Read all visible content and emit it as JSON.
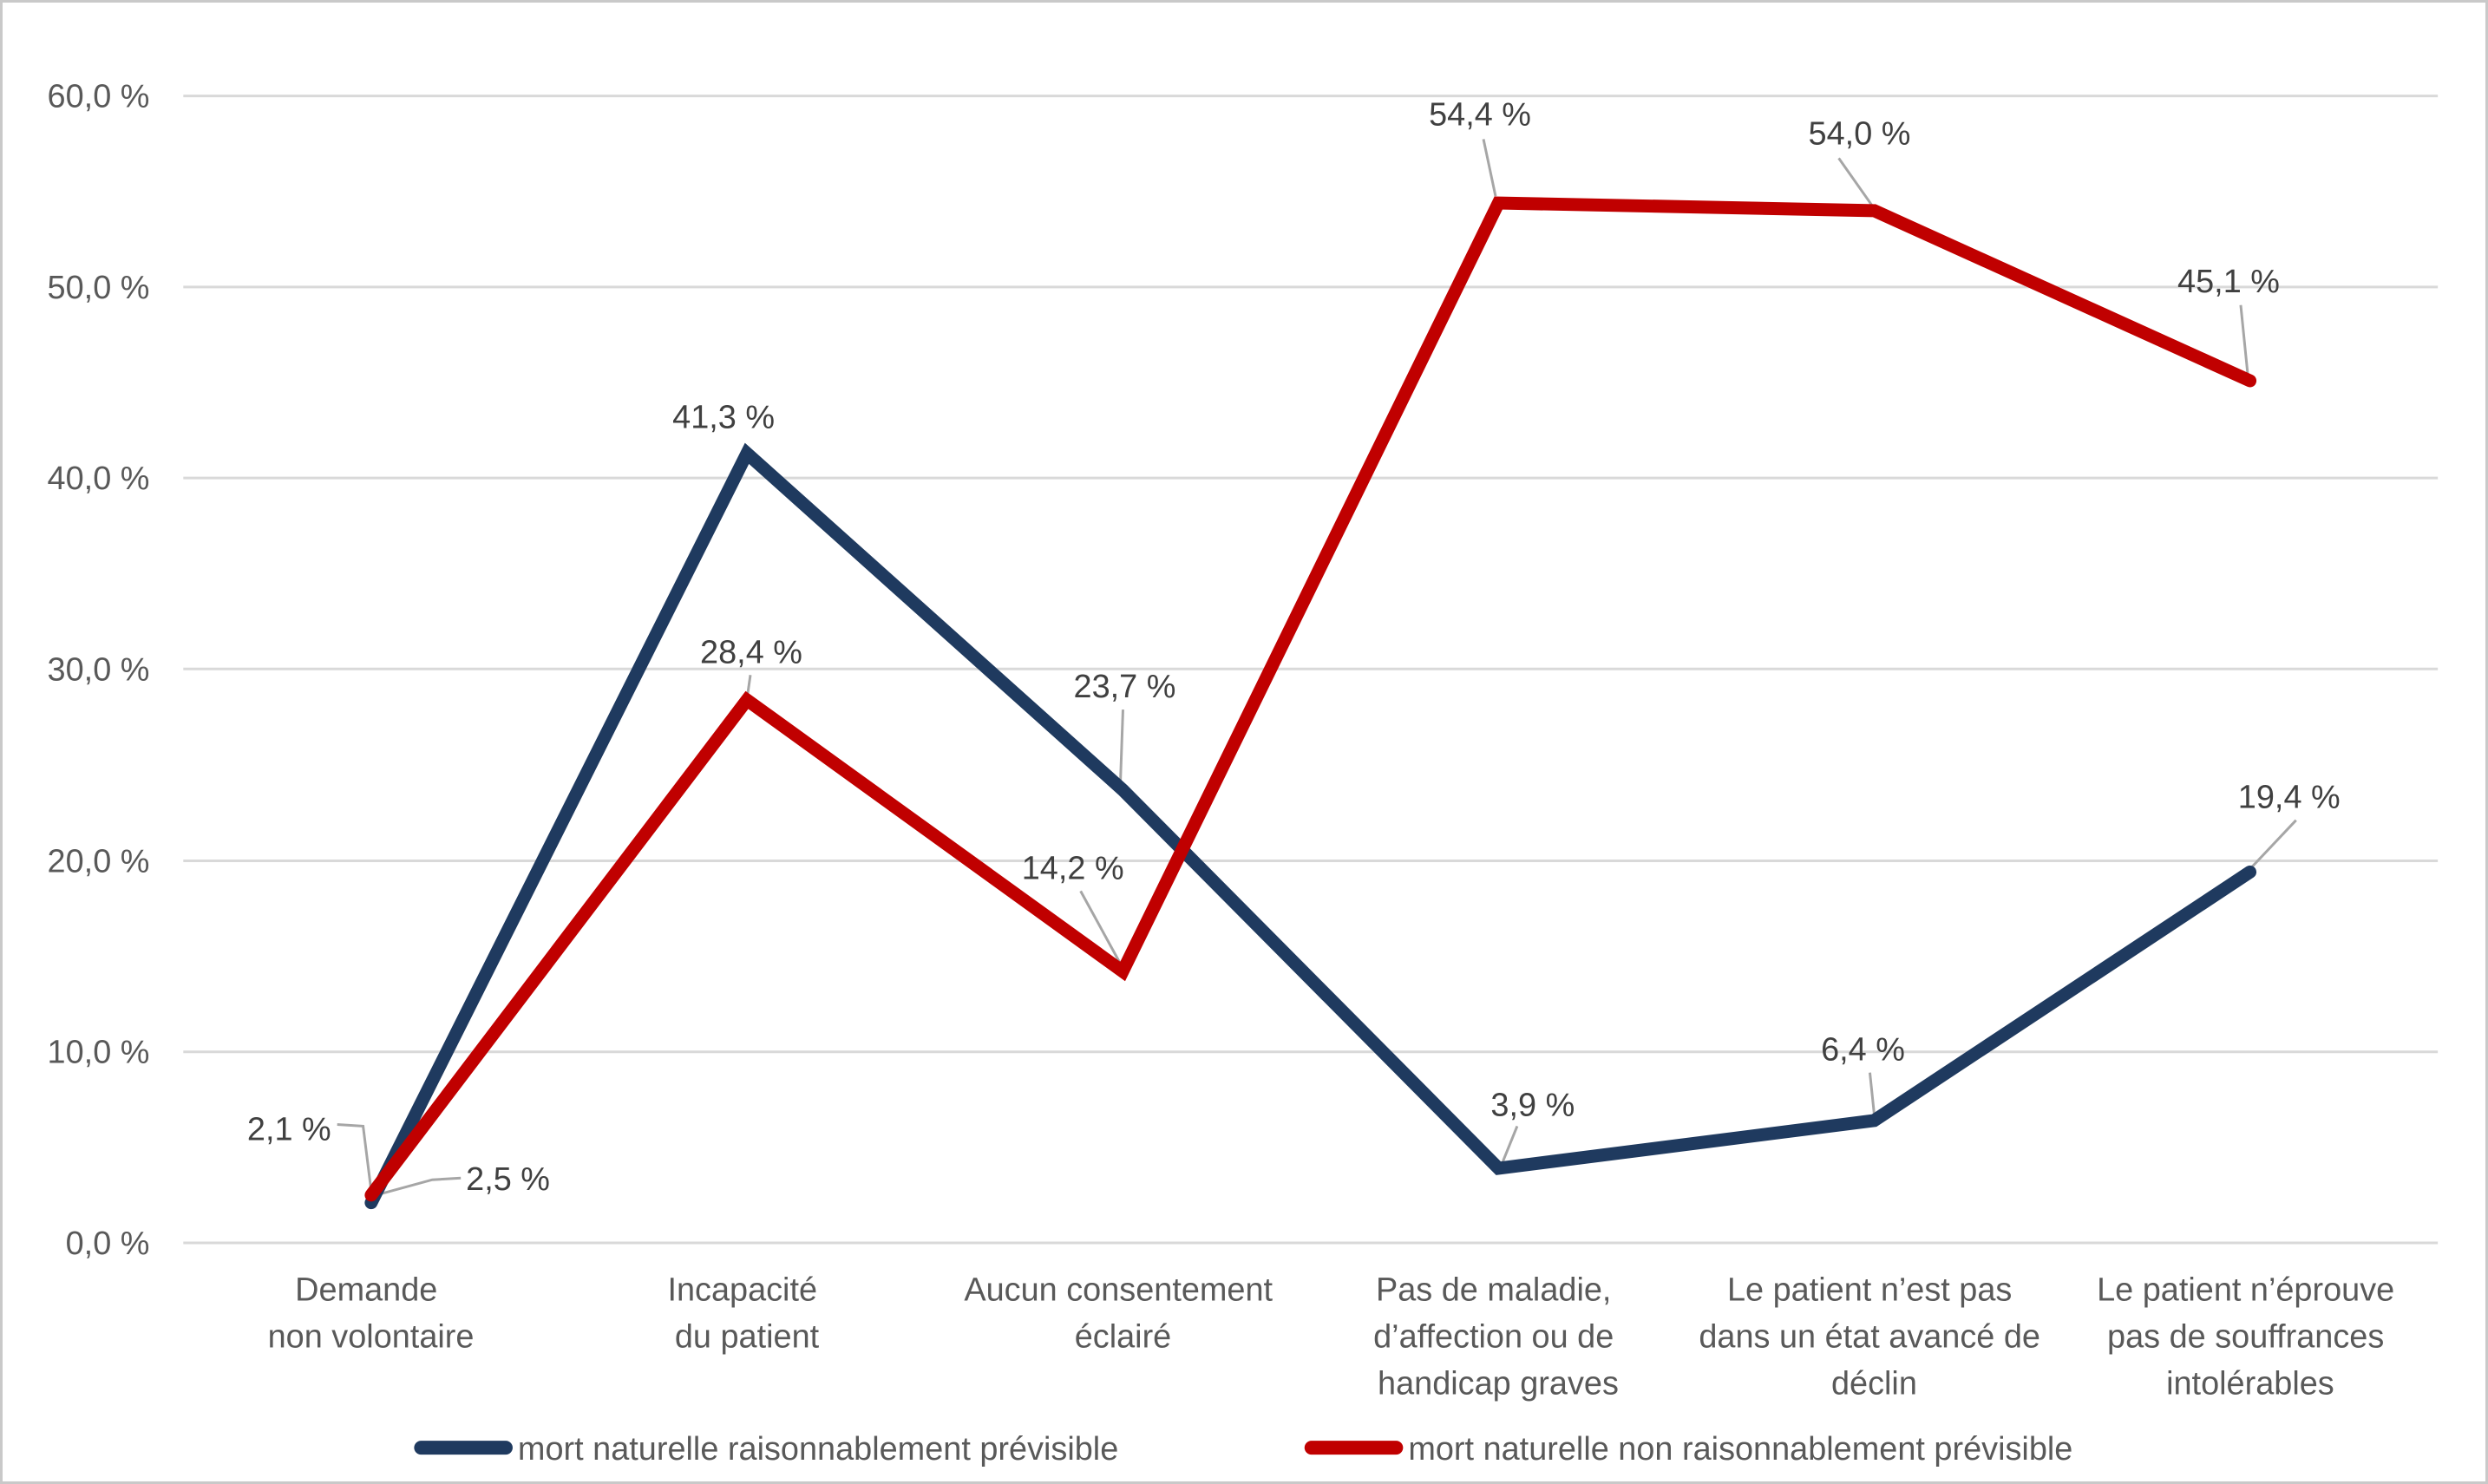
{
  "chart_data": {
    "type": "line",
    "title": "",
    "categories": [
      [
        "Demande",
        "non volontaire"
      ],
      [
        "Incapacité",
        "du patient"
      ],
      [
        "Aucun consentement",
        "éclairé"
      ],
      [
        "Pas de maladie,",
        "d’affection ou de",
        "handicap graves"
      ],
      [
        "Le patient n’est pas",
        "dans un état avancé de",
        "déclin"
      ],
      [
        "Le patient n’éprouve",
        "pas de souffrances",
        "intolérables"
      ]
    ],
    "series": [
      {
        "name": "mort naturelle raisonnablement prévisible",
        "color": "#1f3a5f",
        "values": [
          2.1,
          41.3,
          23.7,
          3.9,
          6.4,
          19.4
        ],
        "labels": [
          "2,1 %",
          "41,3 %",
          "23,7 %",
          "3,9 %",
          "6,4 %",
          "19,4 %"
        ]
      },
      {
        "name": "mort naturelle non raisonnablement prévisible",
        "color": "#c00000",
        "values": [
          2.5,
          28.4,
          14.2,
          54.4,
          54.0,
          45.1
        ],
        "labels": [
          "2,5 %",
          "28,4 %",
          "14,2 %",
          "54,4 %",
          "54,0 %",
          "45,1 %"
        ]
      }
    ],
    "y_axis": {
      "min": 0,
      "max": 60,
      "step": 10,
      "tick_labels": [
        "0,0 %",
        "10,0 %",
        "20,0 %",
        "30,0 %",
        "40,0 %",
        "50,0 %",
        "60,0 %"
      ]
    },
    "grid": true,
    "legend_position": "bottom",
    "colors": {
      "gridline": "#d9d9d9",
      "leader_line": "#a6a6a6",
      "axis_text": "#595959",
      "data_label_text": "#404040"
    }
  }
}
